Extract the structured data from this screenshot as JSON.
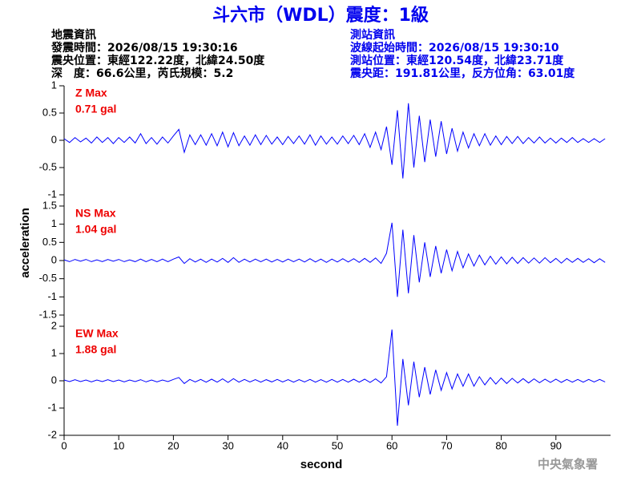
{
  "header": {
    "title": "斗六市（WDL）震度：1級",
    "left": [
      "地震資訊",
      "發震時間：2026/08/15 19:30:16",
      "震央位置：東經122.22度，北緯24.50度",
      "深　度：66.6公里，芮氏規模：5.2"
    ],
    "right": [
      "測站資訊",
      "波線起始時間：2026/08/15 19:30:10",
      "測站位置：東經120.54度，北緯23.71度",
      "震央距：191.81公里，反方位角：63.01度"
    ],
    "footer": "中央氣象署"
  },
  "chart_data": [
    {
      "type": "line",
      "color": "#0000ff",
      "annotations": [
        "Z Max",
        "0.71 gal"
      ],
      "xlim": [
        0,
        100
      ],
      "ylim": [
        -1,
        1
      ],
      "yticks": [
        1,
        0.5,
        0,
        -0.5,
        -1
      ],
      "x": [
        0,
        1,
        2,
        3,
        4,
        5,
        6,
        7,
        8,
        9,
        10,
        11,
        12,
        13,
        14,
        15,
        16,
        17,
        18,
        19,
        20,
        21,
        22,
        23,
        24,
        25,
        26,
        27,
        28,
        29,
        30,
        31,
        32,
        33,
        34,
        35,
        36,
        37,
        38,
        39,
        40,
        41,
        42,
        43,
        44,
        45,
        46,
        47,
        48,
        49,
        50,
        51,
        52,
        53,
        54,
        55,
        56,
        57,
        58,
        59,
        60,
        61,
        62,
        63,
        64,
        65,
        66,
        67,
        68,
        69,
        70,
        71,
        72,
        73,
        74,
        75,
        76,
        77,
        78,
        79,
        80,
        81,
        82,
        83,
        84,
        85,
        86,
        87,
        88,
        89,
        90,
        91,
        92,
        93,
        94,
        95,
        96,
        97,
        98,
        99
      ],
      "values": [
        0.03,
        -0.04,
        0.05,
        -0.03,
        0.04,
        -0.05,
        0.06,
        -0.04,
        0.05,
        -0.06,
        0.05,
        -0.04,
        0.06,
        -0.05,
        0.12,
        -0.06,
        0.05,
        -0.07,
        0.06,
        -0.05,
        0.08,
        0.2,
        -0.22,
        0.1,
        -0.08,
        0.1,
        -0.09,
        0.12,
        -0.1,
        0.15,
        -0.12,
        0.14,
        -0.1,
        0.08,
        -0.09,
        0.1,
        -0.08,
        0.09,
        -0.07,
        0.06,
        -0.08,
        0.07,
        -0.06,
        0.08,
        -0.07,
        0.1,
        -0.09,
        0.08,
        -0.07,
        0.06,
        -0.07,
        0.08,
        -0.06,
        0.09,
        -0.08,
        0.12,
        -0.13,
        0.15,
        -0.17,
        0.25,
        -0.45,
        0.55,
        -0.7,
        0.68,
        -0.5,
        0.45,
        -0.4,
        0.38,
        -0.3,
        0.35,
        -0.25,
        0.22,
        -0.2,
        0.15,
        -0.14,
        0.12,
        -0.1,
        0.12,
        -0.09,
        0.08,
        -0.08,
        0.07,
        -0.06,
        0.07,
        -0.06,
        0.05,
        -0.05,
        0.06,
        -0.05,
        0.04,
        -0.05,
        0.04,
        -0.04,
        0.05,
        -0.04,
        0.03,
        -0.04,
        0.03,
        -0.04,
        0.03
      ]
    },
    {
      "type": "line",
      "color": "#0000ff",
      "annotations": [
        "NS Max",
        "1.04 gal"
      ],
      "ylabel": "acceleration",
      "xlim": [
        0,
        100
      ],
      "ylim": [
        -1.5,
        1.5
      ],
      "yticks": [
        1.5,
        1,
        0.5,
        0,
        -0.5,
        -1,
        -1.5
      ],
      "x": [
        0,
        1,
        2,
        3,
        4,
        5,
        6,
        7,
        8,
        9,
        10,
        11,
        12,
        13,
        14,
        15,
        16,
        17,
        18,
        19,
        20,
        21,
        22,
        23,
        24,
        25,
        26,
        27,
        28,
        29,
        30,
        31,
        32,
        33,
        34,
        35,
        36,
        37,
        38,
        39,
        40,
        41,
        42,
        43,
        44,
        45,
        46,
        47,
        48,
        49,
        50,
        51,
        52,
        53,
        54,
        55,
        56,
        57,
        58,
        59,
        60,
        61,
        62,
        63,
        64,
        65,
        66,
        67,
        68,
        69,
        70,
        71,
        72,
        73,
        74,
        75,
        76,
        77,
        78,
        79,
        80,
        81,
        82,
        83,
        84,
        85,
        86,
        87,
        88,
        89,
        90,
        91,
        92,
        93,
        94,
        95,
        96,
        97,
        98,
        99
      ],
      "values": [
        0.02,
        -0.03,
        0.03,
        -0.02,
        0.03,
        -0.03,
        0.02,
        -0.03,
        0.03,
        -0.02,
        0.03,
        -0.03,
        0.02,
        -0.03,
        0.04,
        -0.03,
        0.03,
        -0.03,
        0.04,
        -0.03,
        0.04,
        0.1,
        -0.08,
        0.05,
        -0.04,
        0.04,
        -0.05,
        0.04,
        -0.04,
        0.06,
        -0.05,
        0.08,
        -0.05,
        0.04,
        -0.04,
        0.04,
        -0.03,
        0.04,
        -0.04,
        0.03,
        -0.04,
        0.04,
        -0.03,
        0.04,
        -0.04,
        0.05,
        -0.04,
        0.04,
        -0.05,
        0.04,
        -0.04,
        0.05,
        -0.04,
        0.05,
        -0.05,
        0.06,
        -0.05,
        0.07,
        -0.08,
        0.2,
        1.04,
        -1.0,
        0.85,
        -0.9,
        0.7,
        -0.6,
        0.5,
        -0.45,
        0.4,
        -0.35,
        0.3,
        -0.28,
        0.25,
        -0.2,
        0.18,
        -0.15,
        0.15,
        -0.12,
        0.12,
        -0.1,
        0.1,
        -0.09,
        0.09,
        -0.08,
        0.08,
        -0.07,
        0.07,
        -0.07,
        0.08,
        -0.06,
        0.06,
        -0.07,
        0.06,
        -0.05,
        0.06,
        -0.05,
        0.05,
        -0.06,
        0.05,
        -0.05
      ]
    },
    {
      "type": "line",
      "color": "#0000ff",
      "annotations": [
        "EW Max",
        "1.88 gal"
      ],
      "xlabel": "second",
      "xlim": [
        0,
        100
      ],
      "ylim": [
        -2,
        2
      ],
      "yticks": [
        2,
        1,
        0,
        -1,
        -2
      ],
      "xticks": [
        0,
        10,
        20,
        30,
        40,
        50,
        60,
        70,
        80,
        90
      ],
      "x": [
        0,
        1,
        2,
        3,
        4,
        5,
        6,
        7,
        8,
        9,
        10,
        11,
        12,
        13,
        14,
        15,
        16,
        17,
        18,
        19,
        20,
        21,
        22,
        23,
        24,
        25,
        26,
        27,
        28,
        29,
        30,
        31,
        32,
        33,
        34,
        35,
        36,
        37,
        38,
        39,
        40,
        41,
        42,
        43,
        44,
        45,
        46,
        47,
        48,
        49,
        50,
        51,
        52,
        53,
        54,
        55,
        56,
        57,
        58,
        59,
        60,
        61,
        62,
        63,
        64,
        65,
        66,
        67,
        68,
        69,
        70,
        71,
        72,
        73,
        74,
        75,
        76,
        77,
        78,
        79,
        80,
        81,
        82,
        83,
        84,
        85,
        86,
        87,
        88,
        89,
        90,
        91,
        92,
        93,
        94,
        95,
        96,
        97,
        98,
        99
      ],
      "values": [
        0.03,
        -0.03,
        0.04,
        -0.03,
        0.03,
        -0.04,
        0.03,
        -0.03,
        0.04,
        -0.03,
        0.03,
        -0.04,
        0.03,
        -0.03,
        0.04,
        -0.04,
        0.03,
        -0.04,
        0.03,
        -0.03,
        0.05,
        0.12,
        -0.1,
        0.05,
        -0.04,
        0.05,
        -0.05,
        0.06,
        -0.05,
        0.07,
        -0.06,
        0.08,
        -0.05,
        0.05,
        -0.04,
        0.04,
        -0.05,
        0.04,
        -0.04,
        0.05,
        -0.04,
        0.04,
        -0.05,
        0.04,
        -0.04,
        0.05,
        -0.05,
        0.04,
        -0.05,
        0.05,
        -0.05,
        0.05,
        -0.05,
        0.06,
        -0.05,
        0.06,
        -0.06,
        0.07,
        -0.08,
        0.15,
        1.88,
        -1.65,
        0.8,
        -0.9,
        0.7,
        -0.6,
        0.5,
        -0.5,
        0.4,
        -0.35,
        0.3,
        -0.3,
        0.25,
        -0.2,
        0.25,
        -0.2,
        0.15,
        -0.15,
        0.12,
        -0.12,
        0.1,
        -0.1,
        0.09,
        -0.08,
        0.08,
        -0.08,
        0.07,
        -0.07,
        0.06,
        -0.06,
        0.06,
        -0.06,
        0.05,
        -0.05,
        0.05,
        -0.05,
        0.05,
        -0.04,
        0.05,
        -0.04
      ]
    }
  ]
}
